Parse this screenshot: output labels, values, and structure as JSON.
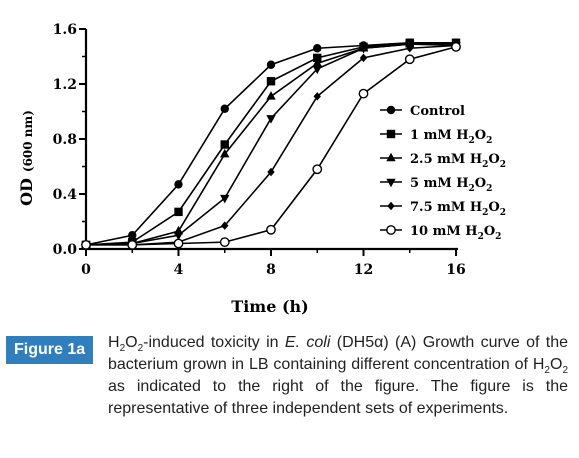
{
  "chart_data": {
    "type": "line",
    "xlabel": "Time (h)",
    "ylabel": "OD",
    "ylabel_unit": "(600 nm)",
    "xlim": [
      0,
      16
    ],
    "ylim": [
      0,
      1.6
    ],
    "x_ticks": [
      "0",
      "4",
      "8",
      "12",
      "16"
    ],
    "y_ticks": [
      "0.0",
      "0.4",
      "0.8",
      "1.2",
      "1.6"
    ],
    "legend_position": "right",
    "series": [
      {
        "name": "Control",
        "marker": "circle-filled",
        "x": [
          0,
          2,
          4,
          6,
          8,
          10,
          12,
          14,
          16
        ],
        "y": [
          0.03,
          0.1,
          0.47,
          1.02,
          1.34,
          1.46,
          1.48,
          1.5,
          1.5
        ]
      },
      {
        "name": "1 mM H₂O₂",
        "marker": "square-filled",
        "x": [
          0,
          2,
          4,
          6,
          8,
          10,
          12,
          14,
          16
        ],
        "y": [
          0.03,
          0.05,
          0.27,
          0.76,
          1.22,
          1.39,
          1.47,
          1.5,
          1.5
        ]
      },
      {
        "name": "2.5 mM H₂O₂",
        "marker": "triangle-up",
        "x": [
          0,
          2,
          4,
          6,
          8,
          10,
          12,
          14,
          16
        ],
        "y": [
          0.03,
          0.04,
          0.13,
          0.69,
          1.11,
          1.35,
          1.46,
          1.49,
          1.49
        ]
      },
      {
        "name": "5 mM H₂O₂",
        "marker": "triangle-down",
        "x": [
          0,
          2,
          4,
          6,
          8,
          10,
          12,
          14,
          16
        ],
        "y": [
          0.03,
          0.04,
          0.1,
          0.37,
          0.95,
          1.31,
          1.46,
          1.49,
          1.48
        ]
      },
      {
        "name": "7.5 mM H₂O₂",
        "marker": "diamond",
        "x": [
          0,
          2,
          4,
          6,
          8,
          10,
          12,
          14,
          16
        ],
        "y": [
          0.03,
          0.03,
          0.05,
          0.17,
          0.56,
          1.11,
          1.39,
          1.46,
          1.48
        ]
      },
      {
        "name": "10 mM H₂O₂",
        "marker": "circle-open",
        "x": [
          0,
          2,
          4,
          6,
          8,
          10,
          12,
          14,
          16
        ],
        "y": [
          0.03,
          0.03,
          0.04,
          0.05,
          0.14,
          0.58,
          1.13,
          1.38,
          1.47
        ]
      }
    ]
  },
  "legend": {
    "entries": [
      {
        "main": "Control",
        "sub": ""
      },
      {
        "main": "1  mM H",
        "mid": "O",
        "num": "2"
      },
      {
        "main": "2.5 mM H",
        "mid": "O",
        "num": "2"
      },
      {
        "main": "5  mM H",
        "mid": "O",
        "num": "2"
      },
      {
        "main": "7.5 mM H",
        "mid": "O",
        "num": "2"
      },
      {
        "main": "10  mM H",
        "mid": "O",
        "num": "2"
      }
    ]
  },
  "caption": {
    "label": "Figure 1a",
    "h": "H",
    "sub2a": "2",
    "o": "O",
    "sub2b": "2",
    "text1": "-induced toxicity in ",
    "ecoli": "E. coli",
    "text2": " (DH5α) (A) Growth curve of the bacterium grown in LB containing different concentration of H",
    "sub2c": "2",
    "o2": "O",
    "sub2d": "2",
    "text3": " as indicated to the right of the figure. The figure is the representative of three independent sets of experiments."
  }
}
